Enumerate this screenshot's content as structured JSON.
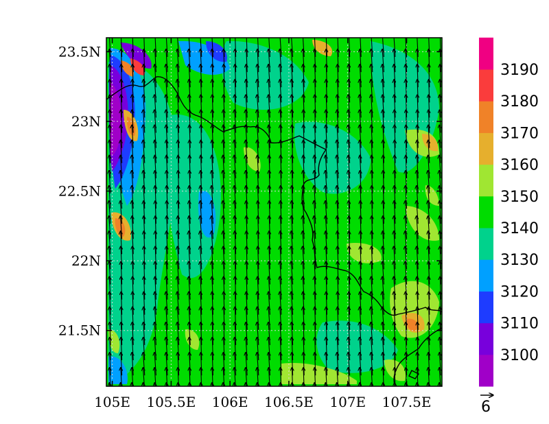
{
  "map": {
    "lon_range": [
      104.95,
      107.8
    ],
    "lat_range": [
      21.1,
      23.6
    ],
    "lon_ticks": [
      {
        "value": 105.0,
        "label": "105E"
      },
      {
        "value": 105.5,
        "label": "105.5E"
      },
      {
        "value": 106.0,
        "label": "106E"
      },
      {
        "value": 106.5,
        "label": "106.5E"
      },
      {
        "value": 107.0,
        "label": "107E"
      },
      {
        "value": 107.5,
        "label": "107.5E"
      }
    ],
    "lat_ticks": [
      {
        "value": 23.5,
        "label": "23.5N"
      },
      {
        "value": 23.0,
        "label": "23N"
      },
      {
        "value": 22.5,
        "label": "22.5N"
      },
      {
        "value": 22.0,
        "label": "22N"
      },
      {
        "value": 21.5,
        "label": "21.5N"
      }
    ],
    "grid": true,
    "wind": {
      "u": -0.3,
      "v": 6.0,
      "reference_label": "6"
    }
  },
  "colorbar": {
    "levels": [
      {
        "color": "#a000c8",
        "label": "3100"
      },
      {
        "color": "#7800dc",
        "label": "3110"
      },
      {
        "color": "#1e3cff",
        "label": "3120"
      },
      {
        "color": "#00a0ff",
        "label": "3130"
      },
      {
        "color": "#00d28c",
        "label": "3140"
      },
      {
        "color": "#00dc00",
        "label": "3150"
      },
      {
        "color": "#a0e632",
        "label": "3160"
      },
      {
        "color": "#e6af2d",
        "label": "3170"
      },
      {
        "color": "#f08228",
        "label": "3180"
      },
      {
        "color": "#fa3c3c",
        "label": "3190"
      },
      {
        "color": "#f00082",
        "label": ""
      }
    ]
  },
  "colors": {
    "background_field": "#00dc00",
    "border": "#000000",
    "grid": "#d8d8d8"
  }
}
